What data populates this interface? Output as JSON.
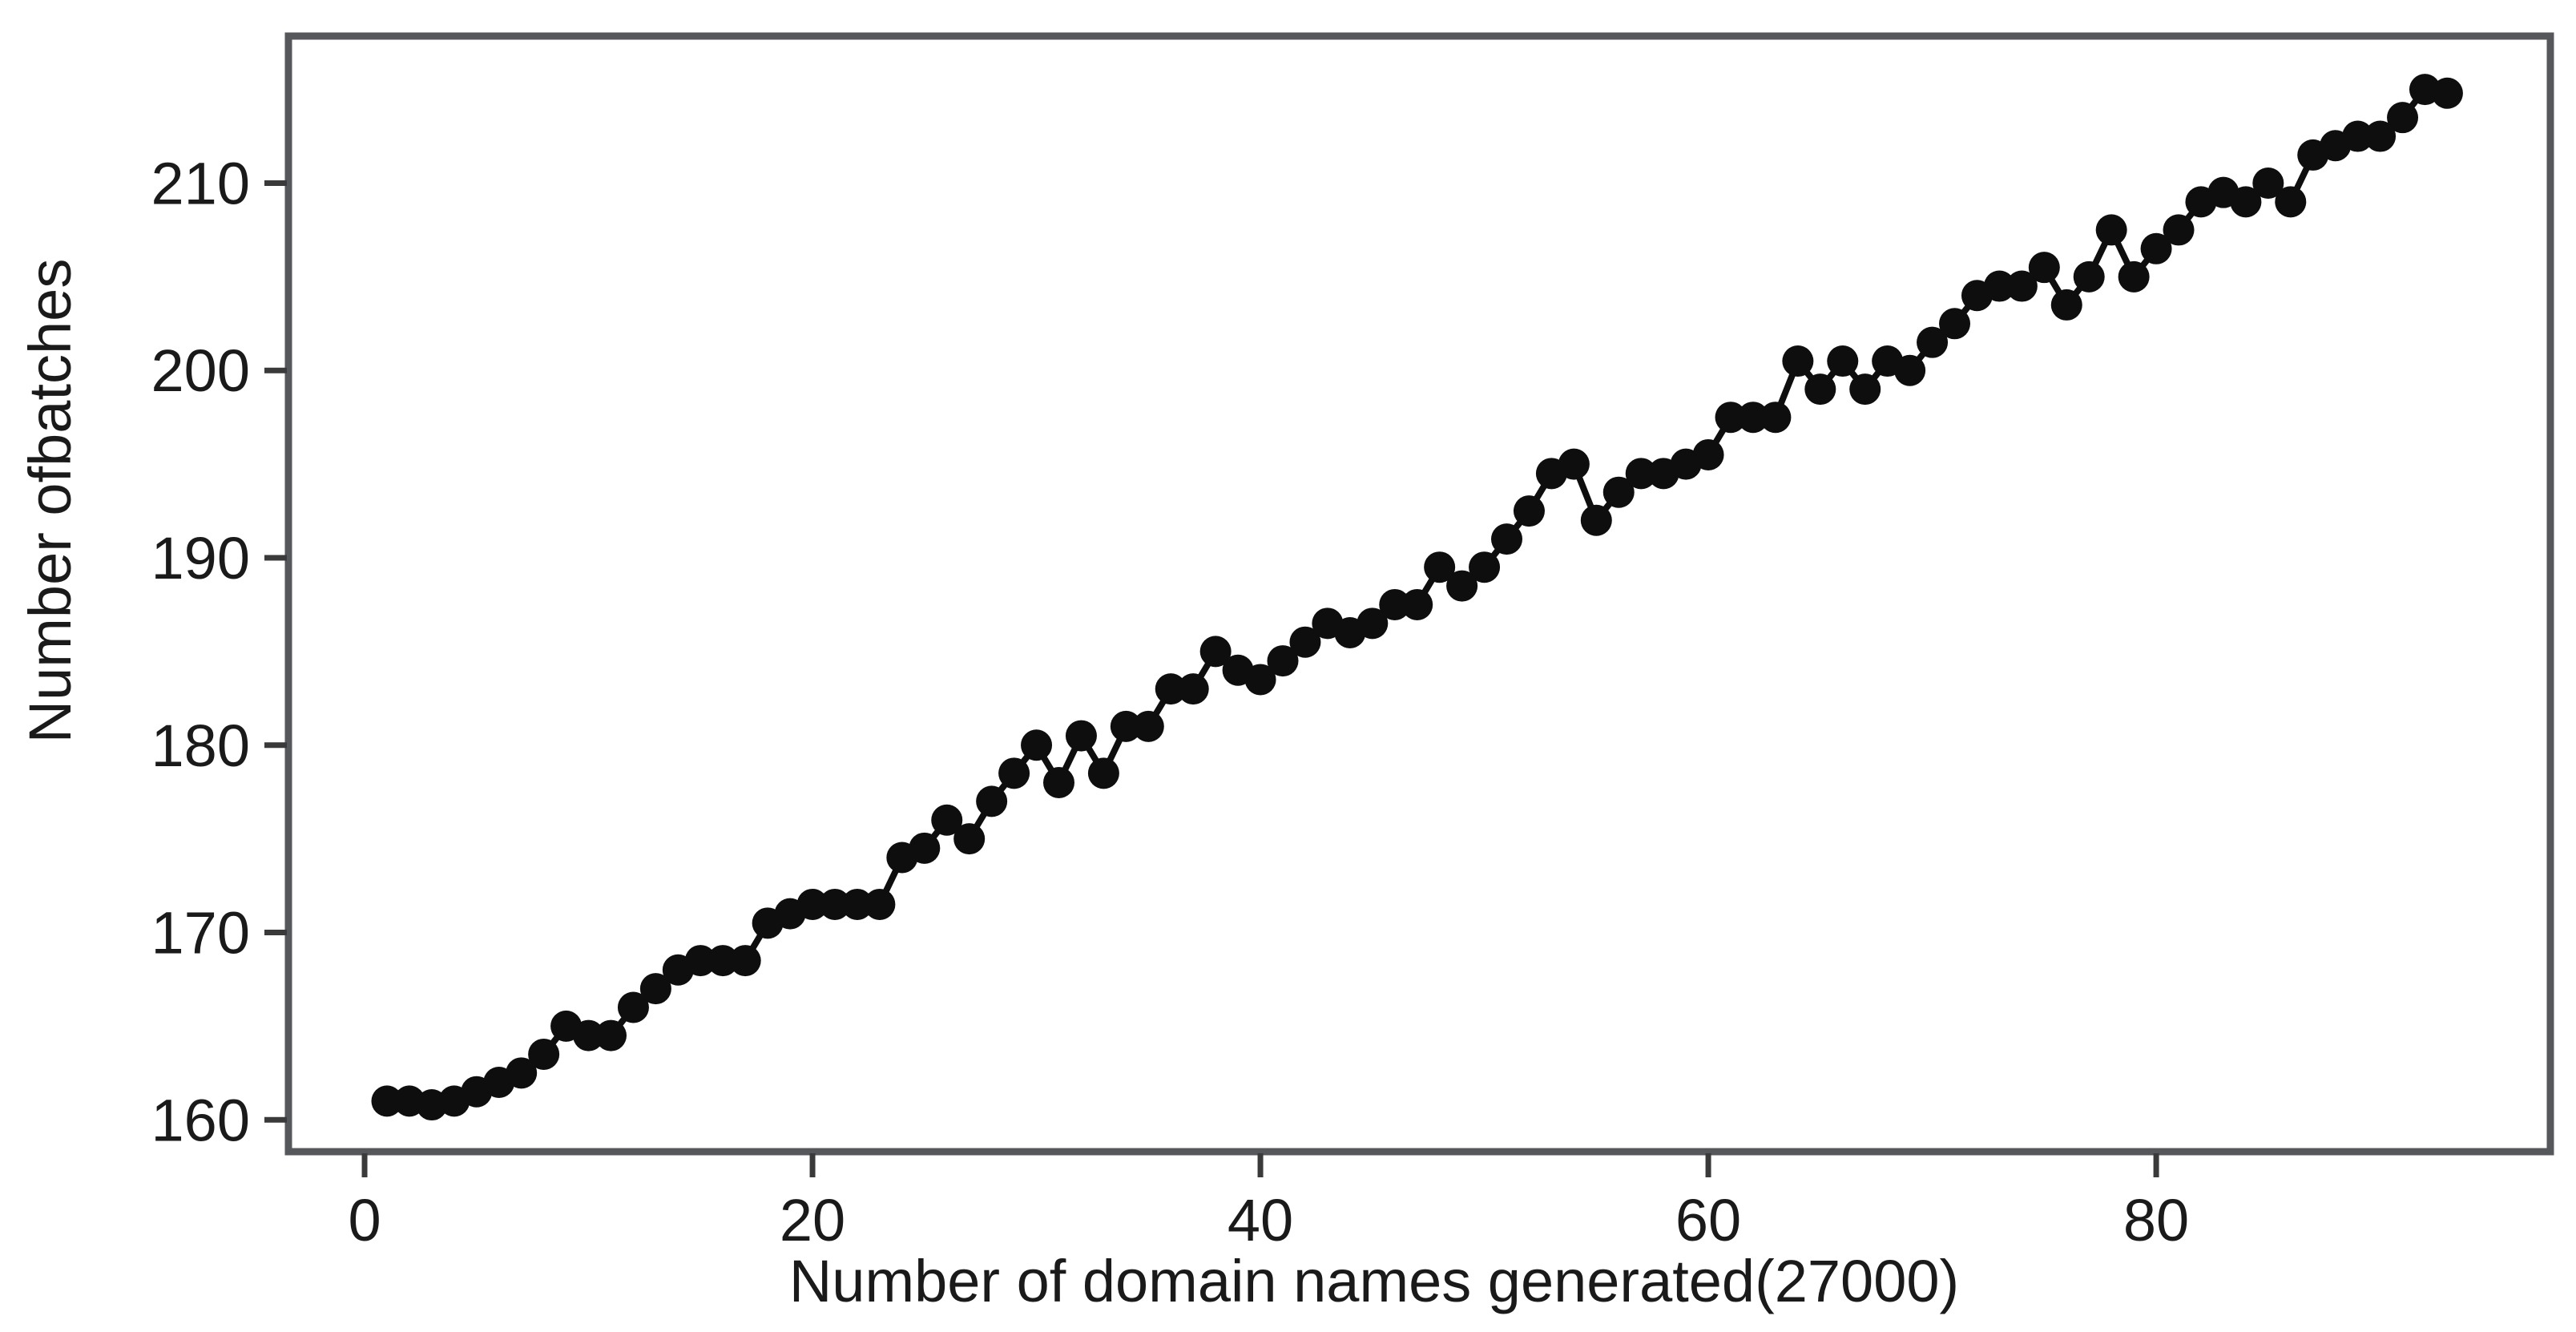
{
  "chart_data": {
    "type": "scatter",
    "connected": true,
    "title": "",
    "xlabel": "Number of domain names generated(27000)",
    "ylabel": "Number ofbatches",
    "x_ticks": [
      0,
      20,
      40,
      60,
      80
    ],
    "y_ticks": [
      160,
      170,
      180,
      190,
      200,
      210
    ],
    "xlim": [
      -3.4,
      97.6
    ],
    "ylim": [
      158.3,
      217.85
    ],
    "grid": false,
    "legend": "none",
    "marker_color": "#0e0e0e",
    "line_color": "#0e0e0e",
    "frame_color": "#55575a",
    "tick_color": "#3a3a3a",
    "x": [
      1,
      2,
      3,
      4,
      5,
      6,
      7,
      8,
      9,
      10,
      11,
      12,
      13,
      14,
      15,
      16,
      17,
      18,
      19,
      20,
      21,
      22,
      23,
      24,
      25,
      26,
      27,
      28,
      29,
      30,
      31,
      32,
      33,
      34,
      35,
      36,
      37,
      38,
      39,
      40,
      41,
      42,
      43,
      44,
      45,
      46,
      47,
      48,
      49,
      50,
      51,
      52,
      53,
      54,
      55,
      56,
      57,
      58,
      59,
      60,
      61,
      62,
      63,
      64,
      65,
      66,
      67,
      68,
      69,
      70,
      71,
      72,
      73,
      74,
      75,
      76,
      77,
      78,
      79,
      80,
      81,
      82,
      83,
      84,
      85,
      86,
      87,
      88,
      89,
      90,
      91,
      92,
      93
    ],
    "y": [
      161,
      161,
      160.8,
      161,
      161.5,
      162,
      162.5,
      163.5,
      165,
      164.5,
      164.5,
      166,
      167,
      168,
      168.5,
      168.5,
      168.5,
      170.5,
      171,
      171.5,
      171.5,
      171.5,
      171.5,
      174,
      174.5,
      176,
      175,
      177,
      178.5,
      180,
      178,
      180.5,
      178.5,
      181,
      181,
      183,
      183,
      185,
      184,
      183.5,
      184.5,
      185.5,
      186.5,
      186,
      186.5,
      187.5,
      187.5,
      189.5,
      188.5,
      189.5,
      191,
      192.5,
      194.5,
      195,
      192,
      193.5,
      194.5,
      194.5,
      195,
      195.5,
      197.5,
      197.5,
      197.5,
      200.5,
      199,
      200.5,
      199,
      200.5,
      200,
      201.5,
      202.5,
      204,
      204.5,
      204.5,
      205.5,
      203.5,
      205,
      207.5,
      205,
      206.5,
      207.5,
      209,
      209.5,
      209,
      210,
      209,
      211.5,
      212,
      212.5,
      212.5,
      213.5,
      215,
      214.8
    ]
  }
}
